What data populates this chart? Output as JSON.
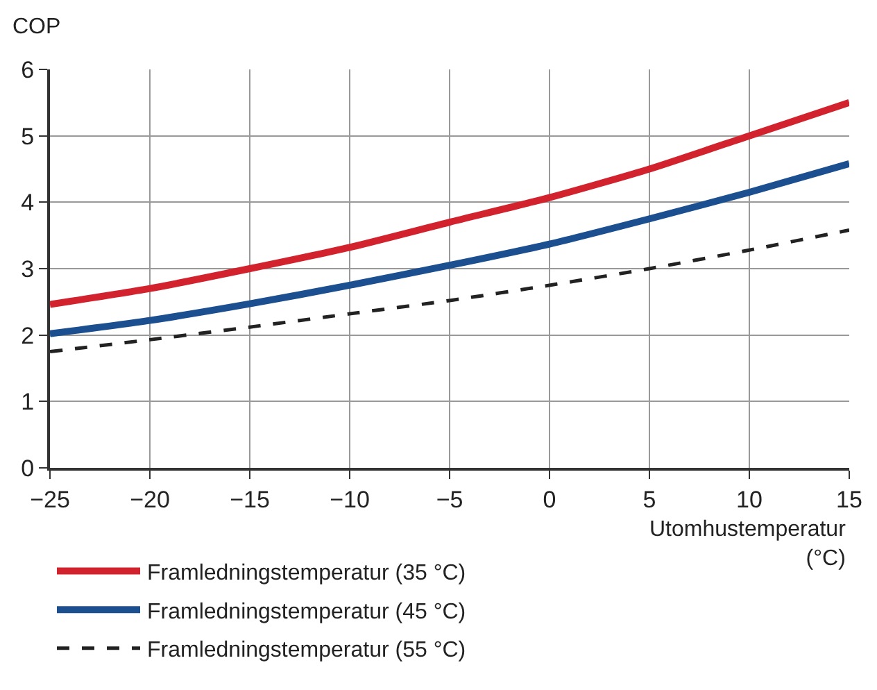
{
  "chart_data": {
    "type": "line",
    "ylabel": "COP",
    "xlabel": "Utomhustemperatur\n(°C)",
    "x": [
      -25,
      -20,
      -15,
      -10,
      -5,
      0,
      5,
      10,
      15
    ],
    "series": [
      {
        "name": "Framledningstemperatur (35 °C)",
        "color": "#d2222d",
        "values": [
          2.46,
          2.7,
          3.0,
          3.32,
          3.7,
          4.07,
          4.5,
          5.0,
          5.5
        ]
      },
      {
        "name": "Framledningstemperatur (45 °C)",
        "color": "#1c4f8f",
        "values": [
          2.02,
          2.22,
          2.47,
          2.75,
          3.05,
          3.37,
          3.75,
          4.15,
          4.58
        ]
      },
      {
        "name": "Framledningstemperatur (55 °C)",
        "color": "#222222",
        "line_style": "dashed",
        "values": [
          1.75,
          1.93,
          2.12,
          2.32,
          2.52,
          2.75,
          3.0,
          3.28,
          3.58
        ]
      }
    ],
    "xlim": [
      -25,
      15
    ],
    "xticks": [
      {
        "value": -25,
        "label": "−25"
      },
      {
        "value": -20,
        "label": "−20"
      },
      {
        "value": -15,
        "label": "−15"
      },
      {
        "value": -10,
        "label": "−10"
      },
      {
        "value": -5,
        "label": "−5"
      },
      0,
      5,
      10,
      15
    ],
    "ylim": [
      0,
      6
    ],
    "yticks": [
      0,
      1,
      2,
      3,
      4,
      5,
      6
    ],
    "grid": true,
    "legend": "bottom left",
    "marker": "none",
    "line_style": "solid"
  }
}
